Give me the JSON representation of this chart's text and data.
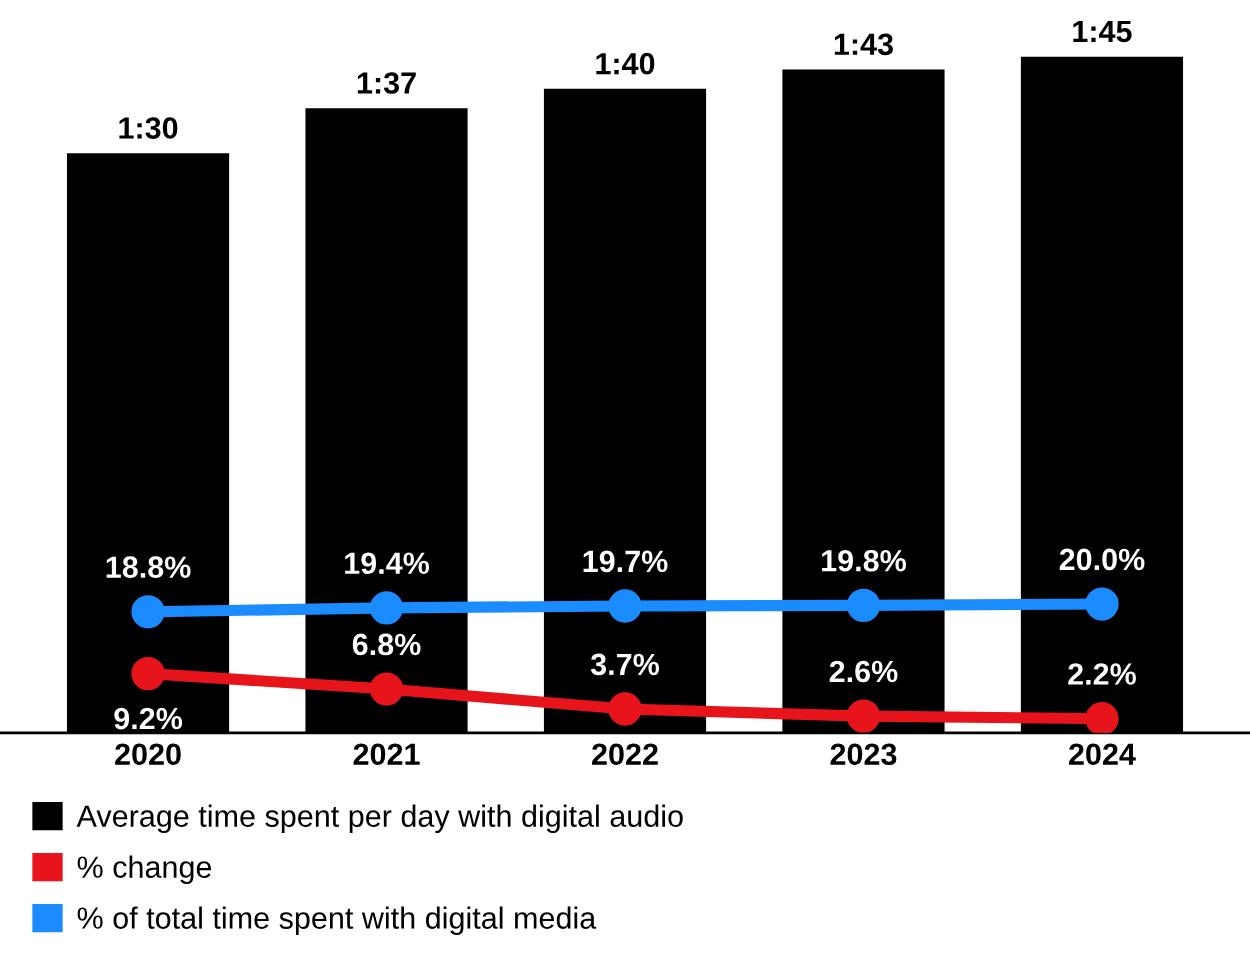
{
  "chart_data": {
    "type": "bar",
    "categories": [
      "2020",
      "2021",
      "2022",
      "2023",
      "2024"
    ],
    "series": [
      {
        "name": "Average time spent per day with digital audio",
        "color": "#000000",
        "values": [
          90,
          97,
          100,
          103,
          105
        ],
        "value_labels": [
          "1:30",
          "1:37",
          "1:40",
          "1:43",
          "1:45"
        ]
      },
      {
        "name": "% change",
        "type": "line",
        "color": "#e8141b",
        "values": [
          9.2,
          6.8,
          3.7,
          2.6,
          2.2
        ],
        "value_labels": [
          "9.2%",
          "6.8%",
          "3.7%",
          "2.6%",
          "2.2%"
        ]
      },
      {
        "name": "% of total time spent with digital media",
        "type": "line",
        "color": "#1a8cff",
        "values": [
          18.8,
          19.4,
          19.7,
          19.8,
          20.0
        ],
        "value_labels": [
          "18.8%",
          "19.4%",
          "19.7%",
          "19.8%",
          "20.0%"
        ]
      }
    ],
    "marker": "circle",
    "grid": false,
    "legend": "bottom",
    "tick_labels": "x"
  }
}
